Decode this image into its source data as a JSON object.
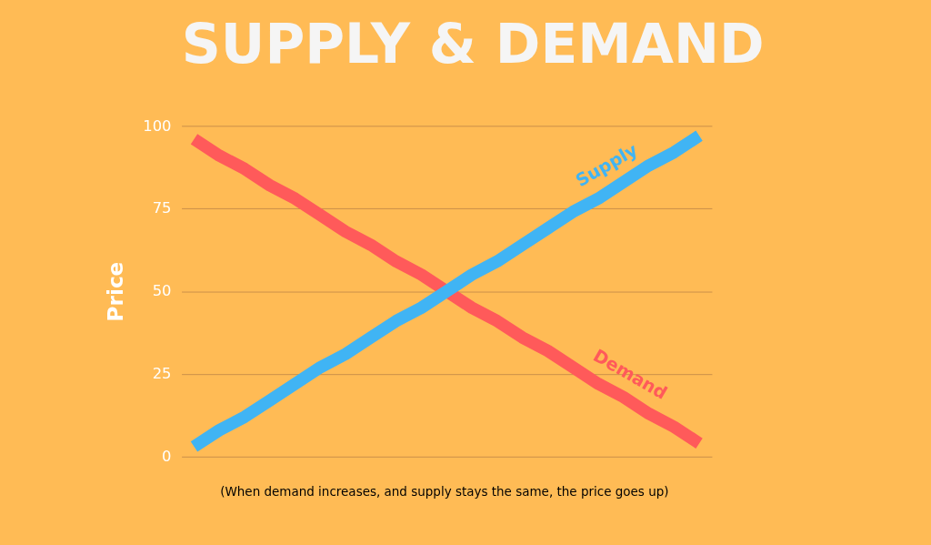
{
  "chart_data": {
    "type": "line",
    "title": "SUPPLY & DEMAND",
    "ylabel": "Price",
    "categories": [
      null,
      null,
      null,
      null,
      null,
      null,
      null,
      null,
      null,
      null,
      null,
      null,
      null,
      null,
      null,
      null,
      null,
      null,
      null,
      null,
      null
    ],
    "series": [
      {
        "name": "Demand",
        "color": "#ff5a5a",
        "values": [
          96,
          91,
          87,
          82,
          78,
          73,
          68,
          64,
          59,
          55,
          50,
          45,
          41,
          36,
          32,
          27,
          22,
          18,
          13,
          9,
          4
        ]
      },
      {
        "name": "Supply",
        "color": "#40b4f4",
        "values": [
          3,
          8,
          12,
          17,
          22,
          27,
          31,
          36,
          41,
          45,
          50,
          55,
          59,
          64,
          69,
          74,
          78,
          83,
          88,
          92,
          97
        ]
      }
    ],
    "ylim": [
      0,
      100
    ],
    "yticks": [
      0,
      25,
      50,
      75,
      100
    ],
    "grid": "y",
    "legend": false,
    "tick_labels": "y",
    "marker": "none",
    "line_style": "solid",
    "annotations": [
      "(When demand increases, and supply stays the same, the price goes up)"
    ]
  }
}
